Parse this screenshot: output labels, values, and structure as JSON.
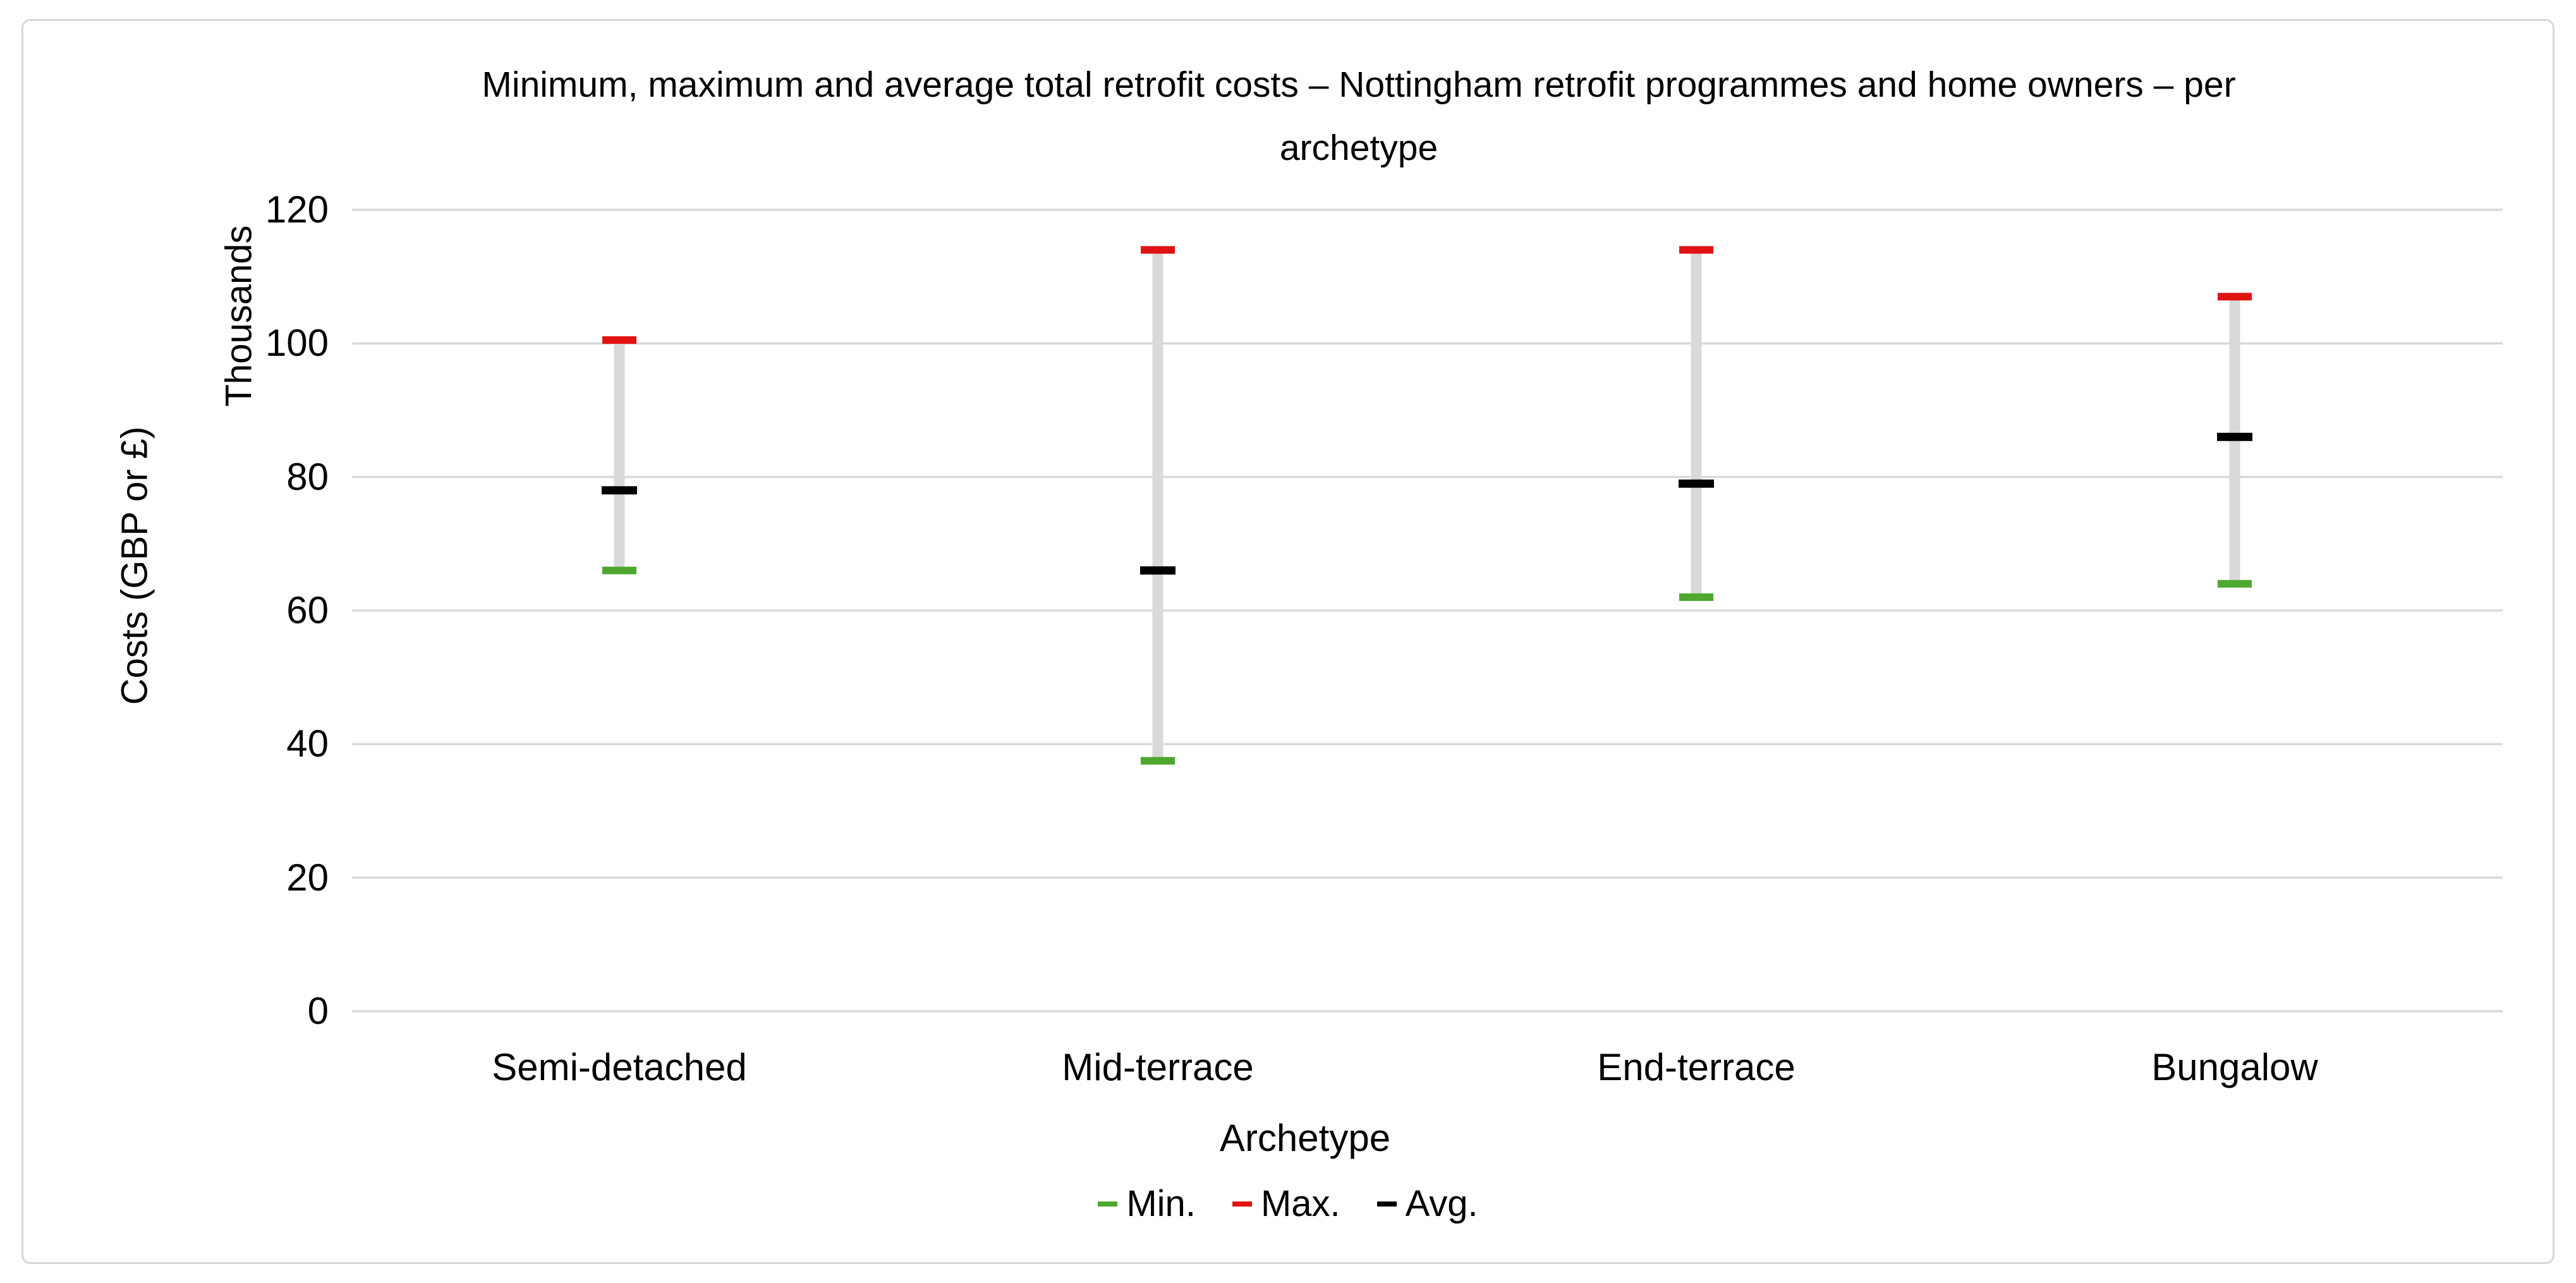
{
  "chart_data": {
    "type": "bar",
    "subtype": "high-low-range",
    "title": "Minimum, maximum and average total retrofit costs – Nottingham retrofit programmes and home owners – per\narchetype",
    "xlabel": "Archetype",
    "ylabel": "Costs (GBP or £)",
    "y_units_label": "Thousands",
    "categories": [
      "Semi-detached",
      "Mid-terrace",
      "End-terrace",
      "Bungalow"
    ],
    "series": [
      {
        "name": "Min.",
        "role": "min",
        "color": "#4ea72e",
        "values": [
          66,
          37.5,
          62,
          64
        ]
      },
      {
        "name": "Max.",
        "role": "max",
        "color": "#e01212",
        "values": [
          100.5,
          114,
          114,
          107
        ]
      },
      {
        "name": "Avg.",
        "role": "avg",
        "color": "#000000",
        "values": [
          78,
          66,
          79,
          86
        ]
      }
    ],
    "ylim": [
      0,
      120
    ],
    "yticks": [
      0,
      20,
      40,
      60,
      80,
      100,
      120
    ],
    "grid": "horizontal",
    "gridline_color": "#d9d9d9",
    "range_bar_color": "#d9d9d9",
    "legend_position": "bottom",
    "legend_entries": [
      {
        "label": "Min.",
        "color": "#4ea72e"
      },
      {
        "label": "Max.",
        "color": "#e01212"
      },
      {
        "label": "Avg.",
        "color": "#000000"
      }
    ]
  }
}
